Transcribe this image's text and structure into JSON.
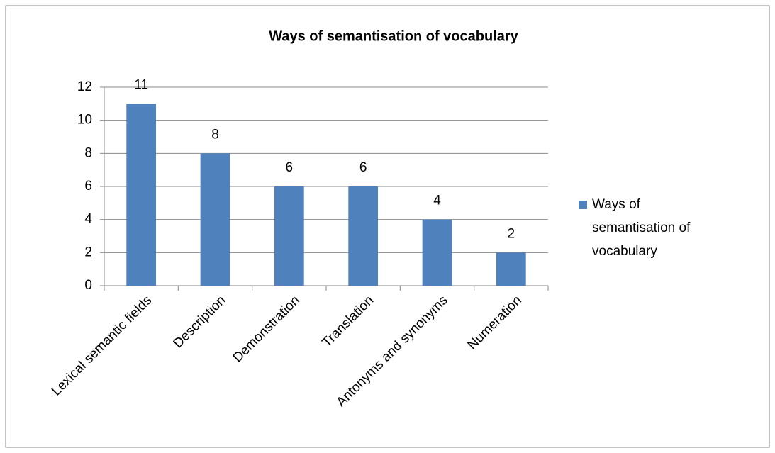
{
  "chart_data": {
    "type": "bar",
    "title": "Ways of semantisation of vocabulary",
    "categories": [
      "Lexical semantic fields",
      "Description",
      "Demonstration",
      "Translation",
      "Antonyms and synonyms",
      "Numeration"
    ],
    "series": [
      {
        "name": "Ways of semantisation of vocabulary",
        "color": "#4f81bd",
        "values": [
          11,
          8,
          6,
          6,
          4,
          2
        ]
      }
    ],
    "ylim": [
      0,
      12
    ],
    "yticks": [
      0,
      2,
      4,
      6,
      8,
      10,
      12
    ],
    "grid": true,
    "legend": "right"
  }
}
